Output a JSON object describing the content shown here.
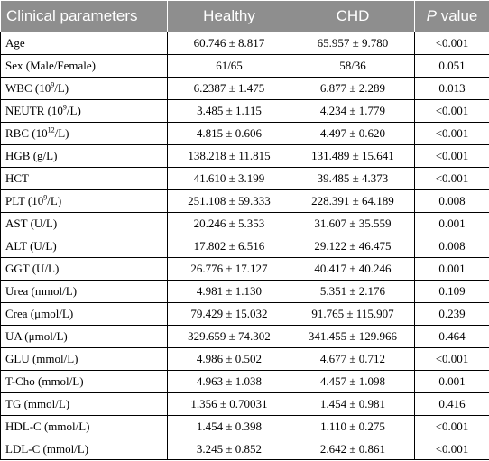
{
  "table": {
    "headers": {
      "param": "Clinical parameters",
      "healthy": "Healthy",
      "chd": "CHD",
      "p_italic": "P",
      "p_rest": " value"
    },
    "rows": [
      {
        "pre": "Age",
        "sup": "",
        "post": "",
        "healthy": "60.746 ± 8.817",
        "chd": "65.957 ± 9.780",
        "p": "<0.001"
      },
      {
        "pre": "Sex (Male/Female)",
        "sup": "",
        "post": "",
        "healthy": "61/65",
        "chd": "58/36",
        "p": "0.051"
      },
      {
        "pre": "WBC (10",
        "sup": "9",
        "post": "/L)",
        "healthy": "6.2387 ± 1.475",
        "chd": "6.877 ± 2.289",
        "p": "0.013"
      },
      {
        "pre": "NEUTR (10",
        "sup": "9",
        "post": "/L)",
        "healthy": "3.485 ± 1.115",
        "chd": "4.234 ± 1.779",
        "p": "<0.001"
      },
      {
        "pre": "RBC (10",
        "sup": "12",
        "post": "/L)",
        "healthy": "4.815 ± 0.606",
        "chd": "4.497 ± 0.620",
        "p": "<0.001"
      },
      {
        "pre": "HGB (g/L)",
        "sup": "",
        "post": "",
        "healthy": "138.218 ± 11.815",
        "chd": "131.489 ± 15.641",
        "p": "<0.001"
      },
      {
        "pre": "HCT",
        "sup": "",
        "post": "",
        "healthy": "41.610 ± 3.199",
        "chd": "39.485 ± 4.373",
        "p": "<0.001"
      },
      {
        "pre": "PLT (10",
        "sup": "9",
        "post": "/L)",
        "healthy": "251.108 ± 59.333",
        "chd": "228.391 ± 64.189",
        "p": "0.008"
      },
      {
        "pre": "AST (U/L)",
        "sup": "",
        "post": "",
        "healthy": "20.246 ± 5.353",
        "chd": "31.607 ± 35.559",
        "p": "0.001"
      },
      {
        "pre": "ALT (U/L)",
        "sup": "",
        "post": "",
        "healthy": "17.802 ± 6.516",
        "chd": "29.122 ± 46.475",
        "p": "0.008"
      },
      {
        "pre": "GGT (U/L)",
        "sup": "",
        "post": "",
        "healthy": "26.776 ± 17.127",
        "chd": "40.417 ± 40.246",
        "p": "0.001"
      },
      {
        "pre": "Urea (mmol/L)",
        "sup": "",
        "post": "",
        "healthy": "4.981 ± 1.130",
        "chd": "5.351 ± 2.176",
        "p": "0.109"
      },
      {
        "pre": "Crea (μmol/L)",
        "sup": "",
        "post": "",
        "healthy": "79.429 ± 15.032",
        "chd": "91.765 ± 115.907",
        "p": "0.239"
      },
      {
        "pre": "UA (μmol/L)",
        "sup": "",
        "post": "",
        "healthy": "329.659 ± 74.302",
        "chd": "341.455 ± 129.966",
        "p": "0.464"
      },
      {
        "pre": "GLU (mmol/L)",
        "sup": "",
        "post": "",
        "healthy": "4.986 ± 0.502",
        "chd": "4.677 ± 0.712",
        "p": "<0.001"
      },
      {
        "pre": "T-Cho (mmol/L)",
        "sup": "",
        "post": "",
        "healthy": "4.963 ± 1.038",
        "chd": "4.457 ± 1.098",
        "p": "0.001"
      },
      {
        "pre": "TG (mmol/L)",
        "sup": "",
        "post": "",
        "healthy": "1.356 ± 0.70031",
        "chd": "1.454 ± 0.981",
        "p": "0.416"
      },
      {
        "pre": "HDL-C (mmol/L)",
        "sup": "",
        "post": "",
        "healthy": "1.454 ± 0.398",
        "chd": "1.110 ± 0.275",
        "p": "<0.001"
      },
      {
        "pre": "LDL-C (mmol/L)",
        "sup": "",
        "post": "",
        "healthy": "3.245 ± 0.852",
        "chd": "2.642 ± 0.861",
        "p": "<0.001"
      }
    ]
  },
  "colors": {
    "header_bg": "#8e8e8e",
    "header_text": "#ffffff",
    "border": "#000000"
  }
}
